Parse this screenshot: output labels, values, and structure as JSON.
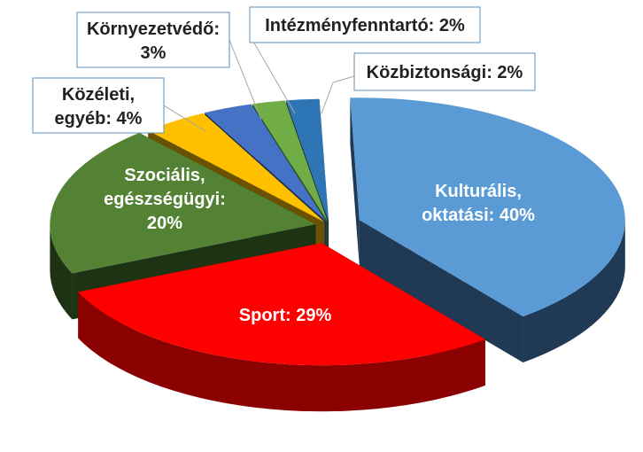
{
  "chart_data": {
    "type": "pie",
    "title": "",
    "slices": [
      {
        "label": "Kulturális, oktatási:",
        "value": 40,
        "value_text": "40%",
        "color": "#5b9bd5",
        "side": "#203a56"
      },
      {
        "label": "Sport:",
        "value": 29,
        "value_text": "29%",
        "color": "#ff0000",
        "side": "#8b0000"
      },
      {
        "label": "Szociális, egészségügyi:",
        "value": 20,
        "value_text": "20%",
        "color": "#548235",
        "side": "#1e3314"
      },
      {
        "label": "Közéleti, egyéb:",
        "value": 4,
        "value_text": "4%",
        "color": "#ffc000",
        "side": "#6b5200"
      },
      {
        "label": "Környezetvédő:",
        "value": 3,
        "value_text": "3%",
        "color": "#4472c4",
        "side": "#1a2e50"
      },
      {
        "label": "Intézményfenntartó:",
        "value": 2,
        "value_text": "2%",
        "color": "#70ad47",
        "side": "#2e4a1c"
      },
      {
        "label": "Közbiztonsági:",
        "value": 2,
        "value_text": "2%",
        "color": "#2e75b6",
        "side": "#123048"
      }
    ]
  }
}
